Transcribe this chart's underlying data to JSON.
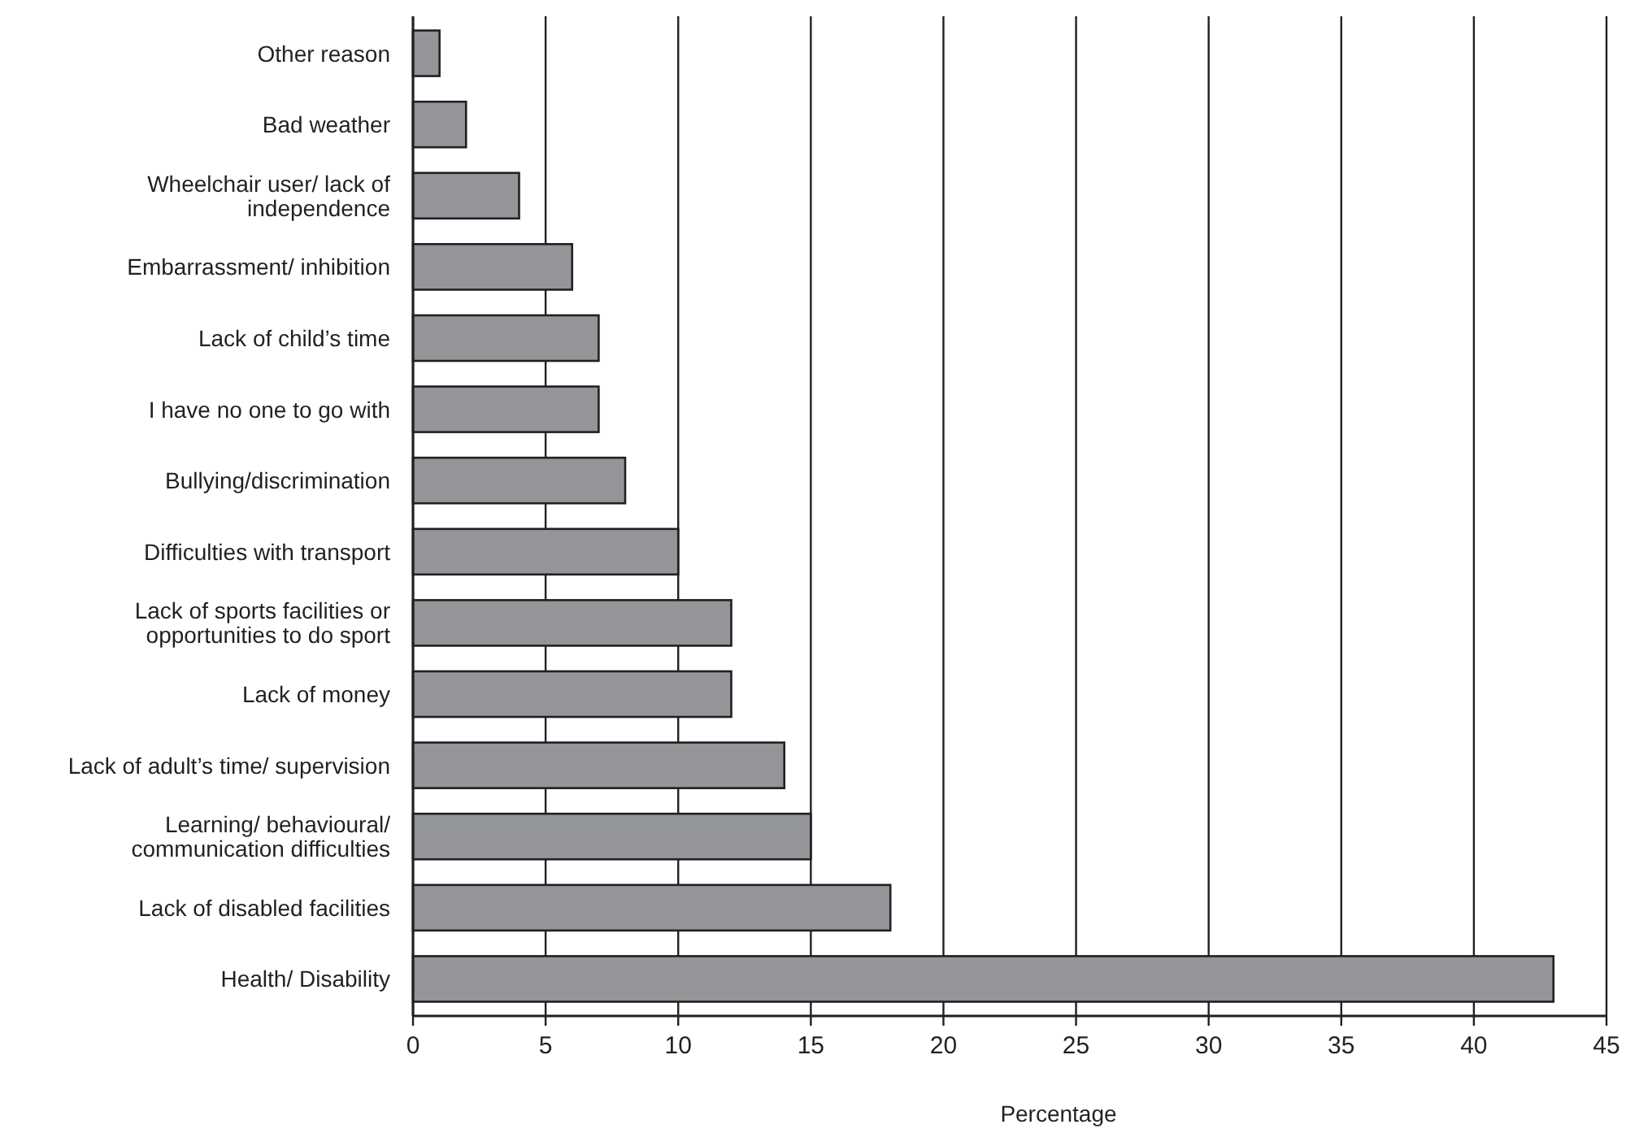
{
  "chart_data": {
    "type": "bar",
    "orientation": "horizontal",
    "xlabel": "Percentage",
    "categories": [
      "Other reason",
      "Bad weather",
      "Wheelchair user/ lack of independence",
      "Embarrassment/ inhibition",
      "Lack of child’s time",
      "I have no one to go with",
      "Bullying/discrimination",
      "Difficulties with transport",
      "Lack of sports facilities or opportunities to do sport",
      "Lack of money",
      "Lack of adult’s time/ supervision",
      "Learning/ behavioural/ communication difficulties",
      "Lack of disabled facilities",
      "Health/ Disability"
    ],
    "values": [
      1,
      2,
      4,
      6,
      7,
      7,
      8,
      10,
      12,
      12,
      14,
      15,
      18,
      43
    ],
    "color": "#939598",
    "xlim": [
      0,
      45
    ],
    "xticks": [
      0,
      5,
      10,
      15,
      20,
      25,
      30,
      35,
      40,
      45
    ],
    "grid": "x"
  }
}
